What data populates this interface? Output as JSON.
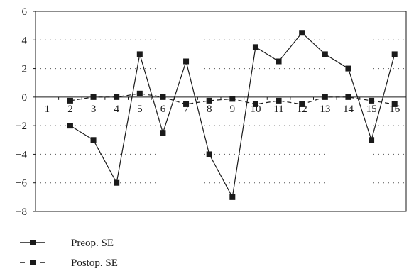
{
  "chart_data": {
    "type": "line",
    "title": "",
    "xlabel": "",
    "ylabel": "",
    "x": [
      1,
      2,
      3,
      4,
      5,
      6,
      7,
      8,
      9,
      10,
      11,
      12,
      13,
      14,
      15,
      16
    ],
    "ylim": [
      -8,
      6
    ],
    "yticks": [
      6,
      4,
      2,
      0,
      -2,
      -4,
      -6,
      -8
    ],
    "grid": "horizontal dotted",
    "legend_position": "bottom-left",
    "series": [
      {
        "name": "Preop. SE",
        "style": "solid",
        "values": [
          null,
          -2,
          -3,
          -6,
          3,
          -2.5,
          2.5,
          -4,
          -7,
          3.5,
          2.5,
          4.5,
          3,
          2,
          -3,
          3
        ]
      },
      {
        "name": "Postop. SE",
        "style": "dashed",
        "values": [
          null,
          -0.25,
          0,
          0,
          0.25,
          0,
          -0.5,
          -0.25,
          -0.125,
          -0.5,
          -0.25,
          -0.5,
          0,
          0,
          -0.25,
          -0.5
        ]
      }
    ]
  },
  "colors": {
    "line": "#1a1a1a",
    "grid": "#555555"
  }
}
